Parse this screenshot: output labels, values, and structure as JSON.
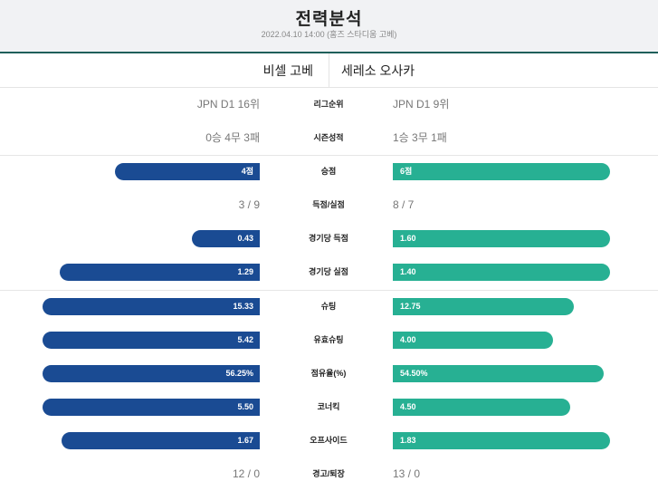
{
  "header": {
    "title": "전력분석",
    "subtitle": "2022.04.10 14:00 (홈즈 스타디움 고베)"
  },
  "teams": {
    "home": "비셀 고베",
    "away": "세레소 오사카"
  },
  "colors": {
    "home": "#1a4b93",
    "away": "#27b093",
    "accent_line": "#1f5f5a"
  },
  "stats": {
    "league_rank": {
      "label": "리그순위",
      "home": "JPN D1 16위",
      "away": "JPN D1 9위"
    },
    "season_record": {
      "label": "시즌성적",
      "home": "0승 4무 3패",
      "away": "1승 3무 1패"
    },
    "points": {
      "label": "승점",
      "home": "4점",
      "away": "6점",
      "home_value": 4,
      "away_value": 6
    },
    "goals": {
      "label": "득점/실점",
      "home": "3 / 9",
      "away": "8 / 7"
    },
    "goals_per_game": {
      "label": "경기당 득점",
      "home": "0.43",
      "away": "1.60",
      "home_value": 0.43,
      "away_value": 1.6
    },
    "conceded_per_game": {
      "label": "경기당 실점",
      "home": "1.29",
      "away": "1.40",
      "home_value": 1.29,
      "away_value": 1.4
    },
    "shots": {
      "label": "슈팅",
      "home": "15.33",
      "away": "12.75",
      "home_value": 15.33,
      "away_value": 12.75
    },
    "shots_on_target": {
      "label": "유효슈팅",
      "home": "5.42",
      "away": "4.00",
      "home_value": 5.42,
      "away_value": 4.0
    },
    "possession": {
      "label": "점유율(%)",
      "home": "56.25%",
      "away": "54.50%",
      "home_value": 56.25,
      "away_value": 54.5
    },
    "corners": {
      "label": "코너킥",
      "home": "5.50",
      "away": "4.50",
      "home_value": 5.5,
      "away_value": 4.5
    },
    "offsides": {
      "label": "오프사이드",
      "home": "1.67",
      "away": "1.83",
      "home_value": 1.67,
      "away_value": 1.83
    },
    "cards": {
      "label": "경고/퇴장",
      "home": "12 / 0",
      "away": "13 / 0"
    }
  }
}
